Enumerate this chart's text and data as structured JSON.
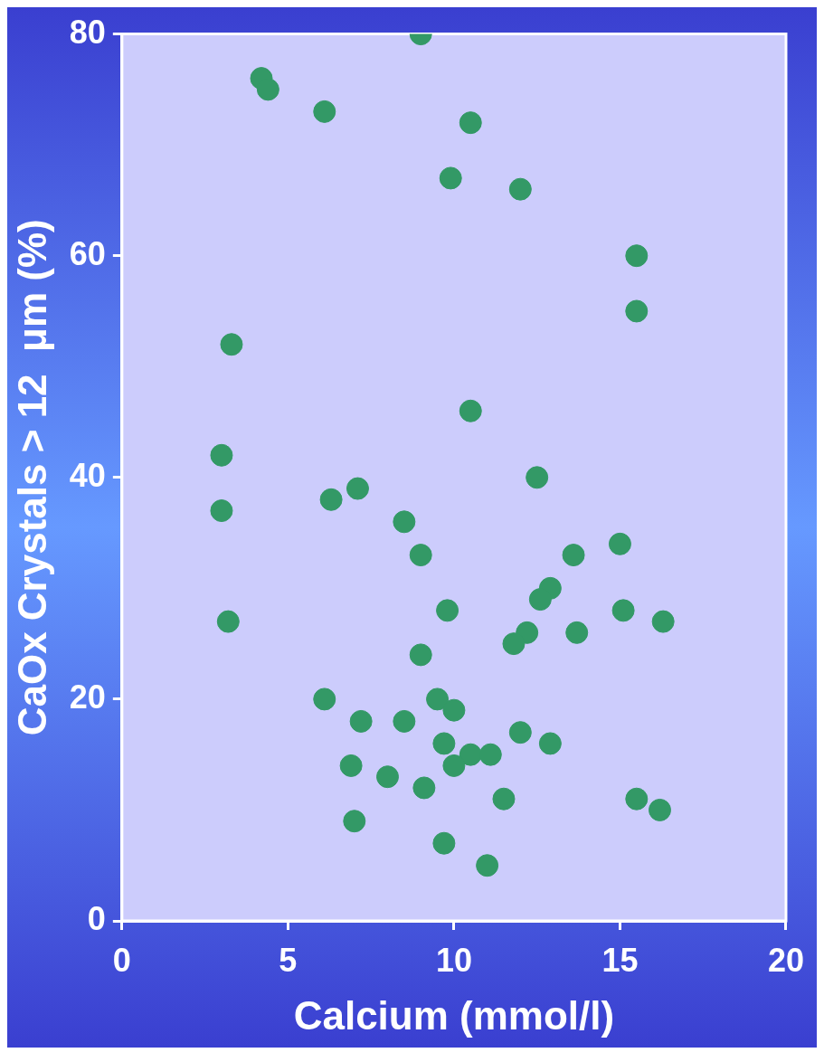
{
  "chart_data": {
    "type": "scatter",
    "xlabel": "Calcium (mmol/l)",
    "ylabel": "CaOx Crystals > 12  μm (%)",
    "xlim": [
      0,
      20
    ],
    "xticks": [
      0,
      5,
      10,
      15,
      20
    ],
    "ylim": [
      0,
      80
    ],
    "yticks": [
      0,
      20,
      40,
      60,
      80
    ],
    "grid": false,
    "marker": "circle",
    "series": [
      {
        "color": "#339966",
        "x": [
          9,
          4.2,
          4.4,
          6.1,
          10.5,
          9.9,
          12,
          15.5,
          15.5,
          3.3,
          10.5,
          3,
          3,
          12.5,
          6.3,
          7.1,
          8.5,
          9,
          15,
          13.6,
          12.9,
          12.6,
          9.8,
          15.1,
          3.2,
          16.3,
          12.2,
          13.7,
          11.8,
          9,
          6.1,
          9.5,
          10,
          7.2,
          8.5,
          12,
          9.7,
          12.9,
          10.5,
          11.1,
          6.9,
          10,
          8,
          9.1,
          11.5,
          15.5,
          16.2,
          7,
          9.7,
          11
        ],
        "values": [
          80,
          76,
          75,
          73,
          72,
          67,
          66,
          60,
          55,
          52,
          46,
          42,
          37,
          40,
          38,
          39,
          36,
          33,
          34,
          33,
          30,
          29,
          28,
          28,
          27,
          27,
          26,
          26,
          25,
          24,
          20,
          20,
          19,
          18,
          18,
          17,
          16,
          16,
          15,
          15,
          14,
          14,
          13,
          12,
          11,
          11,
          10,
          9,
          7,
          5
        ]
      }
    ]
  }
}
